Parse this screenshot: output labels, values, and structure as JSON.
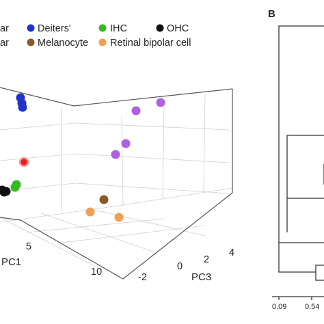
{
  "legend": {
    "row1": [
      {
        "label": "ar",
        "color": null
      },
      {
        "label": "Deiters'",
        "color": "#2233cc"
      },
      {
        "label": "IHC",
        "color": "#33bb22"
      },
      {
        "label": "OHC",
        "color": "#111111"
      }
    ],
    "row2": [
      {
        "label": "ar",
        "color": null
      },
      {
        "label": "Melanocyte",
        "color": "#8b5a2b"
      },
      {
        "label": "Retinal bipolar cell",
        "color": "#f0a050"
      }
    ]
  },
  "chart_data": [
    {
      "type": "scatter",
      "projection": "3d",
      "title": "",
      "xlabel": "PC1",
      "zlabel": "PC3",
      "x_ticks": [
        "5",
        "10"
      ],
      "z_ticks": [
        "-2",
        "0",
        "2",
        "4"
      ],
      "grid": true,
      "legend_position": "top",
      "series": [
        {
          "name": "Deiters'",
          "color": "#2233cc",
          "points": 3
        },
        {
          "name": "IHC",
          "color": "#33bb22",
          "points": 2
        },
        {
          "name": "OHC",
          "color": "#111111",
          "points": 3
        },
        {
          "name": "Melanocyte",
          "color": "#8b5a2b",
          "points": 1
        },
        {
          "name": "Retinal bipolar cell",
          "color": "#f0a050",
          "points": 2
        },
        {
          "name": "",
          "color": "#e8201c",
          "points": 1
        },
        {
          "name": "",
          "color": "#b060e0",
          "points": 4
        }
      ],
      "point_colors": {
        "blue": "#2233cc",
        "red": "#e8201c",
        "green": "#33bb22",
        "black": "#111111",
        "brown": "#8b5a2b",
        "orange": "#f0a050",
        "purple": "#b060e0"
      }
    },
    {
      "type": "dendrogram",
      "panel_label": "B",
      "x_ticks": [
        "0.09",
        "0.54"
      ]
    }
  ]
}
